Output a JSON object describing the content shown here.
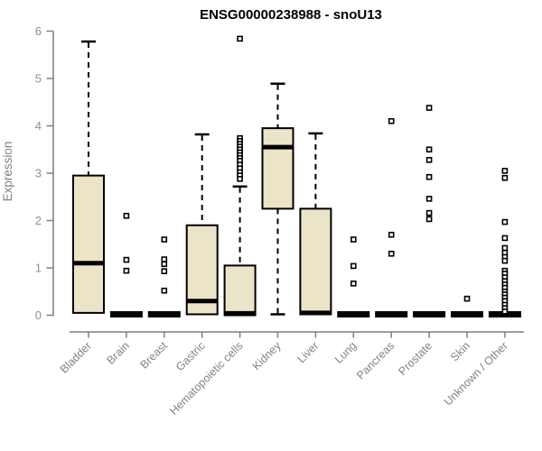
{
  "chart_data": {
    "type": "box",
    "title": "ENSG00000238988 - snoU13",
    "ylabel": "Expression",
    "xlabel": "",
    "ylim": [
      0,
      6
    ],
    "yticks": [
      0,
      1,
      2,
      3,
      4,
      5,
      6
    ],
    "grid": false,
    "legend_position": "none",
    "outlier_marker": "small-hollow-square",
    "colors": {
      "box_fill": "#EBE4C8",
      "box_border": "#000000",
      "median": "#000000",
      "whisker": "#000000",
      "axis": "#7f7f7f",
      "y_tick_label": "#8a9099",
      "x_tick_label": "#838383",
      "title": "#000000",
      "ylabel_color": "#808080",
      "background": "#ffffff"
    },
    "categories": [
      "Bladder",
      "Brain",
      "Breast",
      "Gastric",
      "Hematopoietic cells",
      "Kidney",
      "Liver",
      "Lung",
      "Pancreas",
      "Prostate",
      "Skin",
      "Unknown / Other"
    ],
    "series": [
      {
        "category": "Bladder",
        "min": 0.05,
        "q1": 0.05,
        "median": 1.1,
        "q3": 2.95,
        "max": 5.78,
        "outliers": []
      },
      {
        "category": "Brain",
        "min": 0,
        "q1": 0,
        "median": 0.02,
        "q3": 0.04,
        "max": 0.04,
        "outliers": [
          2.1,
          1.17,
          0.94
        ]
      },
      {
        "category": "Breast",
        "min": 0,
        "q1": 0,
        "median": 0.02,
        "q3": 0.04,
        "max": 0.04,
        "outliers": [
          1.6,
          1.18,
          1.08,
          0.93,
          0.52
        ]
      },
      {
        "category": "Gastric",
        "min": 0,
        "q1": 0.02,
        "median": 0.3,
        "q3": 1.9,
        "max": 3.82,
        "outliers": []
      },
      {
        "category": "Hematopoietic cells",
        "min": 0,
        "q1": 0,
        "median": 0.04,
        "q3": 1.05,
        "max": 2.72,
        "outliers": [
          5.84,
          3.74,
          3.68,
          3.62,
          3.56,
          3.5,
          3.44,
          3.38,
          3.32,
          3.26,
          3.18,
          3.1,
          3.02,
          2.95,
          2.88
        ]
      },
      {
        "category": "Kidney",
        "min": 0.02,
        "q1": 2.25,
        "median": 3.55,
        "q3": 3.95,
        "max": 4.89,
        "outliers": []
      },
      {
        "category": "Liver",
        "min": 0,
        "q1": 0.02,
        "median": 0.05,
        "q3": 2.25,
        "max": 3.84,
        "outliers": []
      },
      {
        "category": "Lung",
        "min": 0,
        "q1": 0,
        "median": 0.02,
        "q3": 0.04,
        "max": 0.04,
        "outliers": [
          1.6,
          1.04,
          0.67
        ]
      },
      {
        "category": "Pancreas",
        "min": 0,
        "q1": 0,
        "median": 0.02,
        "q3": 0.04,
        "max": 0.04,
        "outliers": [
          4.1,
          1.7,
          1.3
        ]
      },
      {
        "category": "Prostate",
        "min": 0,
        "q1": 0,
        "median": 0.02,
        "q3": 0.04,
        "max": 0.04,
        "outliers": [
          4.38,
          3.5,
          3.28,
          2.92,
          2.46,
          2.16,
          2.03
        ]
      },
      {
        "category": "Skin",
        "min": 0,
        "q1": 0,
        "median": 0.02,
        "q3": 0.04,
        "max": 0.04,
        "outliers": [
          0.35
        ]
      },
      {
        "category": "Unknown / Other",
        "min": 0,
        "q1": 0,
        "median": 0.02,
        "q3": 0.04,
        "max": 0.04,
        "outliers": [
          3.05,
          2.9,
          1.97,
          1.63,
          1.42,
          1.32,
          1.23,
          1.15,
          0.94,
          0.88,
          0.8,
          0.72,
          0.65,
          0.58,
          0.5,
          0.44,
          0.37,
          0.3,
          0.22,
          0.15,
          0.08
        ]
      }
    ]
  }
}
